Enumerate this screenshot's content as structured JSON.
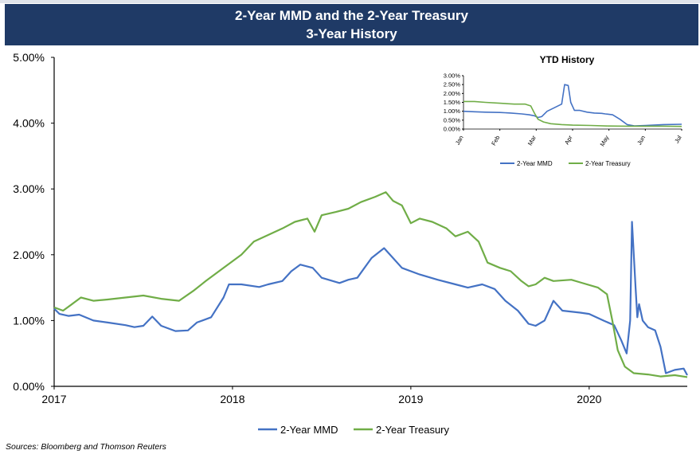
{
  "header": {
    "title": "2-Year MMD and the 2-Year Treasury",
    "subtitle": "3-Year History"
  },
  "source_note": "Sources: Bloomberg and Thomson Reuters",
  "colors": {
    "mmd": "#4472c4",
    "treasury": "#70ad47",
    "banner": "#1f3a66"
  },
  "chart_data": [
    {
      "type": "line",
      "title": "",
      "xlabel": "",
      "ylabel": "",
      "x_tick_labels": [
        "2017",
        "2018",
        "2019",
        "2020"
      ],
      "y_tick_labels": [
        "0.00%",
        "1.00%",
        "2.00%",
        "3.00%",
        "4.00%",
        "5.00%"
      ],
      "ylim": [
        0,
        5
      ],
      "x_unit": "year",
      "xlim": [
        2017.0,
        2020.55
      ],
      "legend_position": "bottom",
      "series": [
        {
          "name": "2-Year MMD",
          "color": "#4472c4",
          "points": [
            [
              2017.0,
              1.18
            ],
            [
              2017.03,
              1.1
            ],
            [
              2017.08,
              1.07
            ],
            [
              2017.14,
              1.09
            ],
            [
              2017.22,
              1.0
            ],
            [
              2017.3,
              0.97
            ],
            [
              2017.4,
              0.93
            ],
            [
              2017.45,
              0.9
            ],
            [
              2017.5,
              0.92
            ],
            [
              2017.55,
              1.06
            ],
            [
              2017.6,
              0.92
            ],
            [
              2017.68,
              0.84
            ],
            [
              2017.75,
              0.85
            ],
            [
              2017.8,
              0.97
            ],
            [
              2017.88,
              1.05
            ],
            [
              2017.95,
              1.35
            ],
            [
              2017.98,
              1.55
            ],
            [
              2018.05,
              1.55
            ],
            [
              2018.15,
              1.51
            ],
            [
              2018.2,
              1.55
            ],
            [
              2018.28,
              1.6
            ],
            [
              2018.33,
              1.75
            ],
            [
              2018.38,
              1.85
            ],
            [
              2018.45,
              1.8
            ],
            [
              2018.5,
              1.65
            ],
            [
              2018.6,
              1.57
            ],
            [
              2018.65,
              1.62
            ],
            [
              2018.7,
              1.65
            ],
            [
              2018.78,
              1.95
            ],
            [
              2018.85,
              2.1
            ],
            [
              2018.9,
              1.95
            ],
            [
              2018.95,
              1.8
            ],
            [
              2019.05,
              1.7
            ],
            [
              2019.15,
              1.62
            ],
            [
              2019.25,
              1.55
            ],
            [
              2019.32,
              1.5
            ],
            [
              2019.4,
              1.55
            ],
            [
              2019.47,
              1.48
            ],
            [
              2019.53,
              1.3
            ],
            [
              2019.6,
              1.15
            ],
            [
              2019.66,
              0.95
            ],
            [
              2019.7,
              0.92
            ],
            [
              2019.75,
              1.0
            ],
            [
              2019.8,
              1.3
            ],
            [
              2019.85,
              1.15
            ],
            [
              2019.95,
              1.12
            ],
            [
              2020.0,
              1.1
            ],
            [
              2020.08,
              1.0
            ],
            [
              2020.14,
              0.93
            ],
            [
              2020.18,
              0.7
            ],
            [
              2020.21,
              0.5
            ],
            [
              2020.23,
              1.0
            ],
            [
              2020.24,
              2.5
            ],
            [
              2020.26,
              1.5
            ],
            [
              2020.27,
              1.05
            ],
            [
              2020.28,
              1.25
            ],
            [
              2020.3,
              1.0
            ],
            [
              2020.33,
              0.9
            ],
            [
              2020.37,
              0.85
            ],
            [
              2020.4,
              0.6
            ],
            [
              2020.43,
              0.2
            ],
            [
              2020.48,
              0.25
            ],
            [
              2020.53,
              0.27
            ],
            [
              2020.55,
              0.17
            ]
          ]
        },
        {
          "name": "2-Year Treasury",
          "color": "#70ad47",
          "points": [
            [
              2017.0,
              1.2
            ],
            [
              2017.05,
              1.15
            ],
            [
              2017.1,
              1.25
            ],
            [
              2017.15,
              1.35
            ],
            [
              2017.22,
              1.3
            ],
            [
              2017.3,
              1.32
            ],
            [
              2017.4,
              1.35
            ],
            [
              2017.5,
              1.38
            ],
            [
              2017.6,
              1.33
            ],
            [
              2017.7,
              1.3
            ],
            [
              2017.78,
              1.45
            ],
            [
              2017.85,
              1.6
            ],
            [
              2017.95,
              1.8
            ],
            [
              2018.05,
              2.0
            ],
            [
              2018.12,
              2.2
            ],
            [
              2018.2,
              2.3
            ],
            [
              2018.28,
              2.4
            ],
            [
              2018.35,
              2.5
            ],
            [
              2018.42,
              2.55
            ],
            [
              2018.46,
              2.35
            ],
            [
              2018.5,
              2.6
            ],
            [
              2018.58,
              2.65
            ],
            [
              2018.65,
              2.7
            ],
            [
              2018.72,
              2.8
            ],
            [
              2018.8,
              2.88
            ],
            [
              2018.86,
              2.95
            ],
            [
              2018.9,
              2.82
            ],
            [
              2018.95,
              2.75
            ],
            [
              2019.0,
              2.48
            ],
            [
              2019.05,
              2.55
            ],
            [
              2019.12,
              2.5
            ],
            [
              2019.2,
              2.4
            ],
            [
              2019.25,
              2.28
            ],
            [
              2019.32,
              2.35
            ],
            [
              2019.38,
              2.2
            ],
            [
              2019.43,
              1.88
            ],
            [
              2019.5,
              1.8
            ],
            [
              2019.56,
              1.75
            ],
            [
              2019.62,
              1.6
            ],
            [
              2019.66,
              1.52
            ],
            [
              2019.7,
              1.55
            ],
            [
              2019.75,
              1.65
            ],
            [
              2019.8,
              1.6
            ],
            [
              2019.9,
              1.62
            ],
            [
              2019.95,
              1.58
            ],
            [
              2020.05,
              1.5
            ],
            [
              2020.1,
              1.4
            ],
            [
              2020.13,
              1.0
            ],
            [
              2020.16,
              0.55
            ],
            [
              2020.2,
              0.3
            ],
            [
              2020.25,
              0.2
            ],
            [
              2020.33,
              0.18
            ],
            [
              2020.4,
              0.15
            ],
            [
              2020.48,
              0.17
            ],
            [
              2020.55,
              0.14
            ]
          ]
        }
      ]
    },
    {
      "type": "line",
      "title": "YTD History",
      "xlabel": "",
      "ylabel": "",
      "x_tick_labels": [
        "Jan",
        "Feb",
        "Mar",
        "Apr",
        "May",
        "Jun",
        "Jul"
      ],
      "y_tick_labels": [
        "0.00%",
        "0.50%",
        "1.00%",
        "1.50%",
        "2.00%",
        "2.50%",
        "3.00%"
      ],
      "ylim": [
        0,
        3
      ],
      "x_unit": "month",
      "xlim": [
        1.0,
        7.0
      ],
      "legend_position": "bottom",
      "series": [
        {
          "name": "2-Year MMD",
          "color": "#4472c4",
          "points": [
            [
              1.0,
              1.0
            ],
            [
              1.3,
              0.97
            ],
            [
              1.6,
              0.95
            ],
            [
              2.0,
              0.93
            ],
            [
              2.3,
              0.9
            ],
            [
              2.6,
              0.85
            ],
            [
              2.8,
              0.8
            ],
            [
              2.95,
              0.75
            ],
            [
              3.05,
              0.65
            ],
            [
              3.15,
              0.7
            ],
            [
              3.3,
              1.0
            ],
            [
              3.5,
              1.2
            ],
            [
              3.7,
              1.4
            ],
            [
              3.78,
              2.5
            ],
            [
              3.88,
              2.45
            ],
            [
              3.95,
              1.5
            ],
            [
              4.05,
              1.05
            ],
            [
              4.2,
              1.05
            ],
            [
              4.4,
              0.95
            ],
            [
              4.6,
              0.9
            ],
            [
              4.8,
              0.88
            ],
            [
              4.9,
              0.85
            ],
            [
              5.1,
              0.8
            ],
            [
              5.3,
              0.55
            ],
            [
              5.5,
              0.25
            ],
            [
              5.7,
              0.18
            ],
            [
              6.0,
              0.2
            ],
            [
              6.5,
              0.25
            ],
            [
              7.0,
              0.27
            ]
          ]
        },
        {
          "name": "2-Year Treasury",
          "color": "#70ad47",
          "points": [
            [
              1.0,
              1.55
            ],
            [
              1.3,
              1.55
            ],
            [
              1.6,
              1.5
            ],
            [
              2.0,
              1.45
            ],
            [
              2.4,
              1.4
            ],
            [
              2.7,
              1.4
            ],
            [
              2.85,
              1.3
            ],
            [
              2.95,
              0.9
            ],
            [
              3.05,
              0.55
            ],
            [
              3.2,
              0.4
            ],
            [
              3.4,
              0.3
            ],
            [
              3.7,
              0.25
            ],
            [
              4.0,
              0.22
            ],
            [
              4.5,
              0.2
            ],
            [
              5.0,
              0.17
            ],
            [
              5.5,
              0.16
            ],
            [
              6.0,
              0.16
            ],
            [
              6.5,
              0.16
            ],
            [
              7.0,
              0.15
            ]
          ]
        }
      ]
    }
  ]
}
